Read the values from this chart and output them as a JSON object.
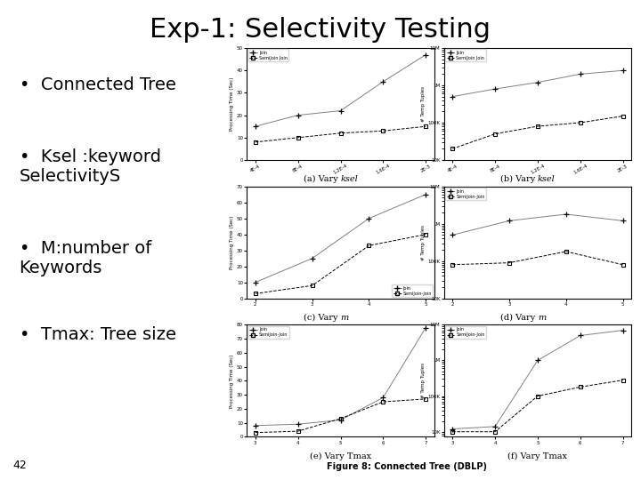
{
  "title": "Exp-1: Selectivity Testing",
  "title_fontsize": 22,
  "title_fontfamily": "DejaVu Sans",
  "background_color": "#ffffff",
  "bullet_fontsize": 14,
  "bullet_fontfamily": "DejaVu Sans",
  "slide_number": "42",
  "figure_caption": "Figure 8: Connected Tree (DBLP)",
  "subplot_captions": [
    "(a) Vary ksel",
    "(b) Vary ksel",
    "(c) Vary m",
    "(d) Vary m",
    "(e) Vary Tmax",
    "(f) Vary Tmax"
  ],
  "plots": [
    {
      "id": "a",
      "xticklabels": [
        "4E-4",
        "8E-4",
        "1.2E-4",
        "1.6E-4",
        "2E-3"
      ],
      "ylabel": "Processing Time (Sec)",
      "yrange": [
        0,
        50
      ],
      "yticks": [
        0,
        10,
        20,
        30,
        40,
        50
      ],
      "join_data": [
        15,
        20,
        22,
        35,
        47
      ],
      "semijoin_data": [
        8,
        10,
        12,
        13,
        15
      ],
      "legend": [
        "Join",
        "SemiJoin Join"
      ],
      "legend_loc": "upper left",
      "ylog": false
    },
    {
      "id": "b",
      "xticklabels": [
        "4E-4",
        "8E-4",
        "1.2E-4",
        "1.6E-4",
        "2E-3"
      ],
      "ylabel": "# Temp Tuples",
      "join_data": [
        500000,
        800000,
        1200000,
        2000000,
        2500000
      ],
      "semijoin_data": [
        20000,
        50000,
        80000,
        100000,
        150000
      ],
      "legend": [
        "Join",
        "SemiJoin Join"
      ],
      "legend_loc": "upper left",
      "ylog": true,
      "ytick_labels": [
        "10K",
        "100K",
        "1M",
        "10M"
      ],
      "ytick_vals": [
        10000,
        100000,
        1000000,
        10000000
      ]
    },
    {
      "id": "c",
      "xticklabels": [
        "2",
        "3",
        "4",
        "5"
      ],
      "xvals": [
        2,
        3,
        4,
        5
      ],
      "ylabel": "Processing Time (Sec)",
      "yrange": [
        0,
        70
      ],
      "yticks": [
        0,
        10,
        20,
        30,
        40,
        50,
        60,
        70
      ],
      "join_data": [
        10,
        25,
        50,
        65
      ],
      "semijoin_data": [
        3,
        8,
        33,
        40
      ],
      "legend": [
        "Join",
        "SemiJoin-Join"
      ],
      "legend_loc": "lower right",
      "ylog": false
    },
    {
      "id": "d",
      "xticklabels": [
        "2",
        "3",
        "4",
        "5"
      ],
      "xvals": [
        2,
        3,
        4,
        5
      ],
      "ylabel": "# Temp Tuples",
      "join_data": [
        500000,
        1200000,
        1800000,
        1200000
      ],
      "semijoin_data": [
        80000,
        90000,
        180000,
        80000
      ],
      "legend": [
        "Join",
        "SemiJoin-Join"
      ],
      "legend_loc": "upper left",
      "ylog": true,
      "ytick_labels": [
        "10K",
        "100K",
        "1M",
        "10M"
      ],
      "ytick_vals": [
        10000,
        100000,
        1000000,
        10000000
      ]
    },
    {
      "id": "e",
      "xticklabels": [
        "3",
        "4",
        "5",
        "6",
        "7"
      ],
      "xvals": [
        3,
        4,
        5,
        6,
        7
      ],
      "ylabel": "Processing Time (Sec)",
      "yrange": [
        0,
        80
      ],
      "yticks": [
        0,
        10,
        20,
        30,
        40,
        50,
        60,
        70,
        80
      ],
      "join_data": [
        8,
        9,
        12,
        28,
        78
      ],
      "semijoin_data": [
        3,
        4,
        13,
        25,
        27
      ],
      "legend": [
        "Join",
        "SemiJoin-Join"
      ],
      "legend_loc": "upper left",
      "ylog": false
    },
    {
      "id": "f",
      "xticklabels": [
        "3",
        "4",
        "5",
        "6",
        "7"
      ],
      "xvals": [
        3,
        4,
        5,
        6,
        7
      ],
      "ylabel": "# Temp Tuples",
      "join_data": [
        12000,
        14000,
        1000000,
        5000000,
        7000000
      ],
      "semijoin_data": [
        10000,
        10000,
        100000,
        180000,
        280000
      ],
      "legend": [
        "Join",
        "SemiJoin-Join"
      ],
      "legend_loc": "upper left",
      "ylog": true,
      "ytick_labels": [
        "10K",
        "100K",
        "1M",
        "10M"
      ],
      "ytick_vals": [
        10000,
        100000,
        1000000,
        10000000
      ]
    }
  ]
}
